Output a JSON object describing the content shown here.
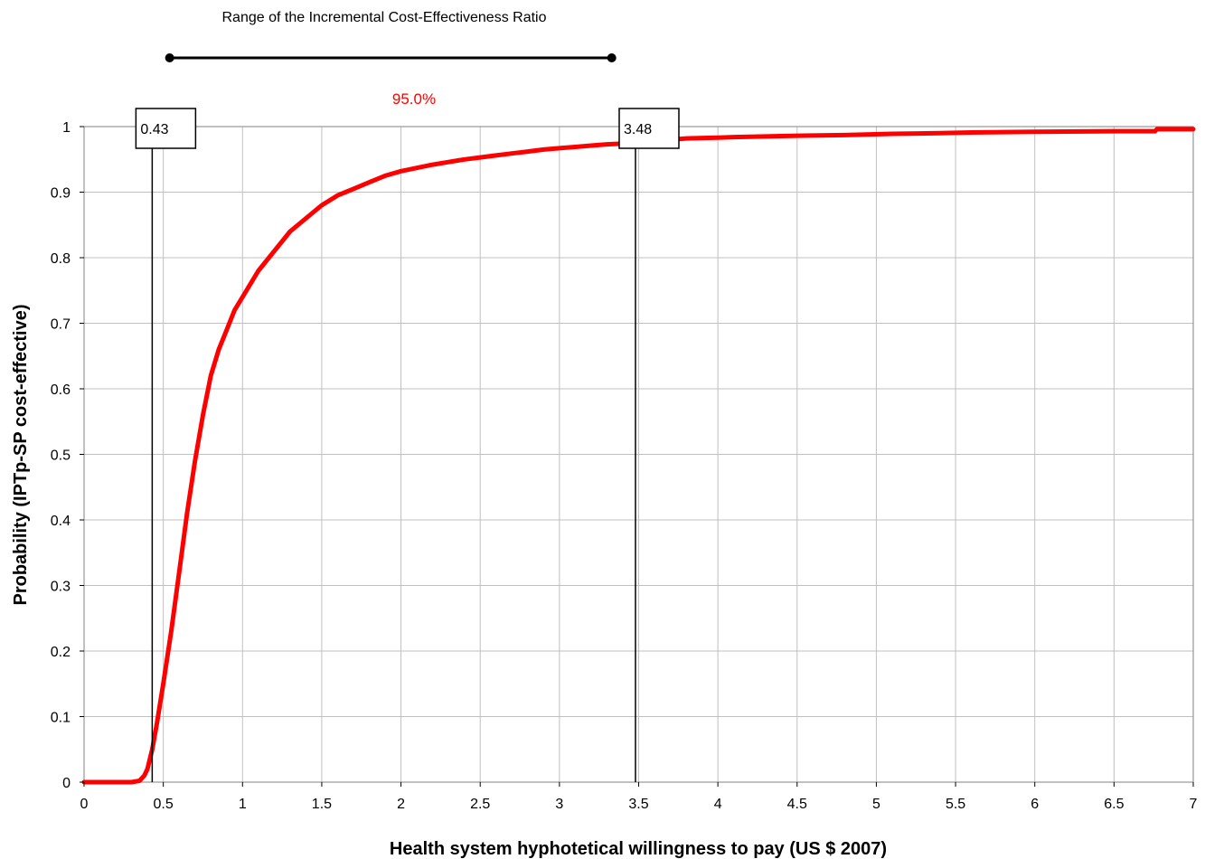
{
  "chart_data": {
    "type": "line",
    "title": "Range of the Incremental Cost-Effectiveness Ratio",
    "xlabel": "Health system hyphotetical willingness to pay (US $ 2007)",
    "ylabel": "Probability (IPTp-SP cost-effective)",
    "xlim": [
      0,
      7
    ],
    "ylim": [
      0,
      1
    ],
    "x_ticks": [
      "0",
      "0.5",
      "1",
      "1.5",
      "2",
      "2.5",
      "3",
      "3.5",
      "4",
      "4.5",
      "5",
      "5.5",
      "6",
      "6.5",
      "7"
    ],
    "y_ticks": [
      "0",
      "0.1",
      "0.2",
      "0.3",
      "0.4",
      "0.5",
      "0.6",
      "0.7",
      "0.8",
      "0.9",
      "1"
    ],
    "grid": true,
    "colors": {
      "curve": "#ff0000",
      "grid": "#c0c0c0",
      "markers": "#000000"
    },
    "range_percent": "95.0%",
    "range_bar": {
      "start": 0.54,
      "end": 3.33
    },
    "markers": [
      {
        "label": "0.43",
        "x": 0.43
      },
      {
        "label": "3.48",
        "x": 3.48
      }
    ],
    "series": [
      {
        "x": [
          0,
          0.3,
          0.35,
          0.38,
          0.4,
          0.43,
          0.46,
          0.5,
          0.55,
          0.6,
          0.65,
          0.7,
          0.75,
          0.8,
          0.85,
          0.9,
          0.95,
          1.0,
          1.1,
          1.2,
          1.3,
          1.4,
          1.5,
          1.6,
          1.7,
          1.8,
          1.9,
          2.0,
          2.1,
          2.2,
          2.3,
          2.4,
          2.5,
          2.6,
          2.7,
          2.8,
          2.9,
          3.0,
          3.1,
          3.2,
          3.3,
          3.48,
          3.6,
          3.7,
          3.8,
          4.0,
          4.1,
          4.3,
          4.5,
          4.8,
          5.1,
          5.4,
          5.6,
          6.0,
          6.5,
          6.76,
          6.77,
          7.0
        ],
        "y": [
          0,
          0,
          0.002,
          0.01,
          0.02,
          0.05,
          0.09,
          0.15,
          0.23,
          0.32,
          0.41,
          0.49,
          0.56,
          0.62,
          0.66,
          0.69,
          0.72,
          0.74,
          0.78,
          0.81,
          0.84,
          0.86,
          0.88,
          0.895,
          0.905,
          0.915,
          0.925,
          0.932,
          0.937,
          0.942,
          0.946,
          0.95,
          0.953,
          0.956,
          0.959,
          0.962,
          0.965,
          0.967,
          0.969,
          0.971,
          0.973,
          0.975,
          0.978,
          0.98,
          0.982,
          0.983,
          0.984,
          0.985,
          0.986,
          0.987,
          0.989,
          0.99,
          0.991,
          0.992,
          0.993,
          0.993,
          0.996,
          0.996
        ]
      }
    ]
  }
}
